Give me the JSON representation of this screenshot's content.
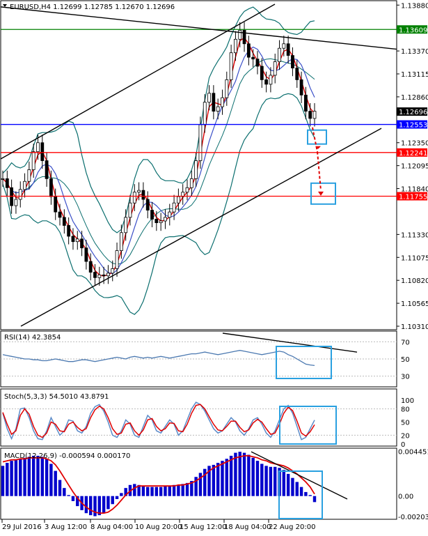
{
  "chart_data": [
    {
      "panel": "price",
      "type": "candlestick",
      "title": "EURUSD,H4  1.12699 1.12785 1.12670 1.12696",
      "ylim": [
        1.1031,
        1.1389
      ],
      "y_ticks": [
        "1.13880",
        "1.13370",
        "1.13115",
        "1.12860",
        "1.12350",
        "1.12095",
        "1.11840",
        "1.11330",
        "1.11075",
        "1.10820",
        "1.10565",
        "1.10310"
      ],
      "x_ticks": [
        "29 Jul 2016",
        "3 Aug 12:00",
        "8 Aug 04:00",
        "10 Aug 20:00",
        "15 Aug 12:00",
        "18 Aug 04:00",
        "22 Aug 20:00"
      ],
      "levels": [
        {
          "value": 1.13609,
          "label": "1.13609",
          "color": "#008000"
        },
        {
          "value": 1.12553,
          "label": "1.12553",
          "color": "#0000ff"
        },
        {
          "value": 1.12241,
          "label": "1.12241",
          "color": "#ff0000"
        },
        {
          "value": 1.11755,
          "label": "1.11755",
          "color": "#ff0000"
        }
      ],
      "last_price": {
        "value": 1.12696,
        "label": "1.12696"
      },
      "close": [
        1.1195,
        1.1185,
        1.1165,
        1.1172,
        1.1183,
        1.1192,
        1.1205,
        1.1225,
        1.1235,
        1.1215,
        1.1195,
        1.1175,
        1.1158,
        1.1152,
        1.1143,
        1.1131,
        1.1125,
        1.1128,
        1.1118,
        1.1103,
        1.1091,
        1.1085,
        1.1088,
        1.1087,
        1.109,
        1.1095,
        1.1115,
        1.1135,
        1.1152,
        1.1168,
        1.118,
        1.1182,
        1.1172,
        1.116,
        1.115,
        1.1146,
        1.1148,
        1.1152,
        1.1158,
        1.1168,
        1.1175,
        1.118,
        1.1185,
        1.1195,
        1.1215,
        1.1255,
        1.128,
        1.129,
        1.127,
        1.1275,
        1.1285,
        1.1305,
        1.1335,
        1.135,
        1.136,
        1.1345,
        1.133,
        1.1328,
        1.132,
        1.1305,
        1.13,
        1.131,
        1.1325,
        1.134,
        1.1345,
        1.1332,
        1.1318,
        1.1305,
        1.1288,
        1.127,
        1.1262,
        1.127
      ]
    },
    {
      "panel": "rsi",
      "type": "line",
      "title": "RSI(14) 42.3854",
      "ylim": [
        20,
        80
      ],
      "y_ticks": [
        "70",
        "50",
        "30"
      ],
      "series": [
        {
          "values": [
            55,
            54,
            53,
            52,
            51,
            50,
            50,
            49,
            49,
            48,
            48,
            49,
            50,
            49,
            48,
            47,
            47,
            48,
            49,
            49,
            48,
            47,
            48,
            49,
            50,
            51,
            52,
            51,
            50,
            52,
            53,
            52,
            51,
            52,
            51,
            52,
            53,
            52,
            51,
            52,
            53,
            54,
            55,
            56,
            56,
            57,
            58,
            57,
            56,
            55,
            56,
            57,
            58,
            59,
            60,
            59,
            58,
            57,
            56,
            55,
            56,
            57,
            58,
            59,
            58,
            55,
            53,
            50,
            47,
            44,
            43,
            42.39
          ]
        }
      ]
    },
    {
      "panel": "stochastic",
      "type": "line",
      "title": "Stoch(5,3,3) 54.5010 43.8791",
      "ylim": [
        0,
        100
      ],
      "y_ticks": [
        "100",
        "80",
        "50",
        "20",
        "0"
      ],
      "series": [
        {
          "color": "#5a8ac8",
          "values": [
            70,
            35,
            12,
            35,
            80,
            82,
            60,
            30,
            12,
            10,
            30,
            60,
            40,
            20,
            30,
            55,
            52,
            30,
            25,
            40,
            70,
            85,
            90,
            75,
            50,
            20,
            15,
            30,
            55,
            45,
            20,
            15,
            40,
            65,
            55,
            30,
            25,
            40,
            55,
            45,
            20,
            30,
            55,
            80,
            95,
            90,
            75,
            55,
            35,
            25,
            30,
            45,
            60,
            50,
            30,
            20,
            35,
            55,
            60,
            45,
            25,
            15,
            30,
            55,
            80,
            88,
            70,
            40,
            10,
            15,
            35,
            54.5
          ]
        },
        {
          "color": "#e00000",
          "values": [
            72,
            45,
            22,
            30,
            65,
            80,
            68,
            40,
            20,
            15,
            25,
            50,
            45,
            30,
            28,
            45,
            50,
            38,
            30,
            35,
            60,
            78,
            86,
            80,
            60,
            35,
            22,
            25,
            45,
            48,
            30,
            20,
            32,
            55,
            58,
            40,
            30,
            35,
            48,
            47,
            30,
            28,
            45,
            70,
            88,
            90,
            80,
            62,
            45,
            32,
            30,
            40,
            52,
            52,
            38,
            28,
            32,
            48,
            56,
            50,
            35,
            22,
            25,
            45,
            70,
            84,
            76,
            52,
            25,
            18,
            28,
            43.88
          ]
        }
      ]
    },
    {
      "panel": "macd",
      "type": "bar",
      "title": "MACD(12,26,9) -0.000594 0.000170",
      "ylim": [
        -0.00203,
        0.00441
      ],
      "y_ticks": [
        "0.004451",
        "0.00",
        "-0.002032"
      ],
      "series": [
        {
          "name": "histogram",
          "color": "#0000cc",
          "values": [
            0.003,
            0.0033,
            0.0035,
            0.0036,
            0.0037,
            0.0038,
            0.0039,
            0.004,
            0.004,
            0.0039,
            0.0037,
            0.0032,
            0.0025,
            0.0016,
            0.0008,
            0.0001,
            -0.0005,
            -0.001,
            -0.0014,
            -0.0017,
            -0.0019,
            -0.002,
            -0.0019,
            -0.0017,
            -0.0013,
            -0.0008,
            -0.0003,
            0.0003,
            0.0008,
            0.0011,
            0.0012,
            0.0011,
            0.001,
            0.0009,
            0.0009,
            0.0009,
            0.0009,
            0.001,
            0.001,
            0.0011,
            0.0011,
            0.0012,
            0.0013,
            0.0015,
            0.0019,
            0.0023,
            0.0027,
            0.003,
            0.0031,
            0.0033,
            0.0035,
            0.0037,
            0.004,
            0.0043,
            0.0044,
            0.0043,
            0.0041,
            0.0038,
            0.0035,
            0.0032,
            0.003,
            0.0029,
            0.0029,
            0.0028,
            0.0026,
            0.0022,
            0.0018,
            0.0014,
            0.0009,
            0.0004,
            0.0001,
            -0.0006
          ]
        },
        {
          "name": "signal",
          "color": "#e00000",
          "values": [
            0.0034,
            0.0035,
            0.0036,
            0.0036,
            0.0037,
            0.0037,
            0.0038,
            0.0038,
            0.0038,
            0.0038,
            0.0037,
            0.0035,
            0.0031,
            0.0025,
            0.0018,
            0.0011,
            0.0004,
            -0.0002,
            -0.0007,
            -0.0011,
            -0.0014,
            -0.0016,
            -0.0017,
            -0.0017,
            -0.0016,
            -0.0013,
            -0.0009,
            -0.0004,
            0.0001,
            0.0005,
            0.0008,
            0.001,
            0.001,
            0.001,
            0.001,
            0.001,
            0.001,
            0.001,
            0.001,
            0.001,
            0.0011,
            0.0011,
            0.0012,
            0.0013,
            0.0015,
            0.0018,
            0.0021,
            0.0025,
            0.0028,
            0.003,
            0.0032,
            0.0034,
            0.0036,
            0.0038,
            0.0039,
            0.004,
            0.004,
            0.0039,
            0.0038,
            0.0036,
            0.0035,
            0.0033,
            0.0032,
            0.0031,
            0.003,
            0.0028,
            0.0025,
            0.0022,
            0.0018,
            0.0014,
            0.0009,
            0.0002
          ]
        }
      ]
    }
  ]
}
